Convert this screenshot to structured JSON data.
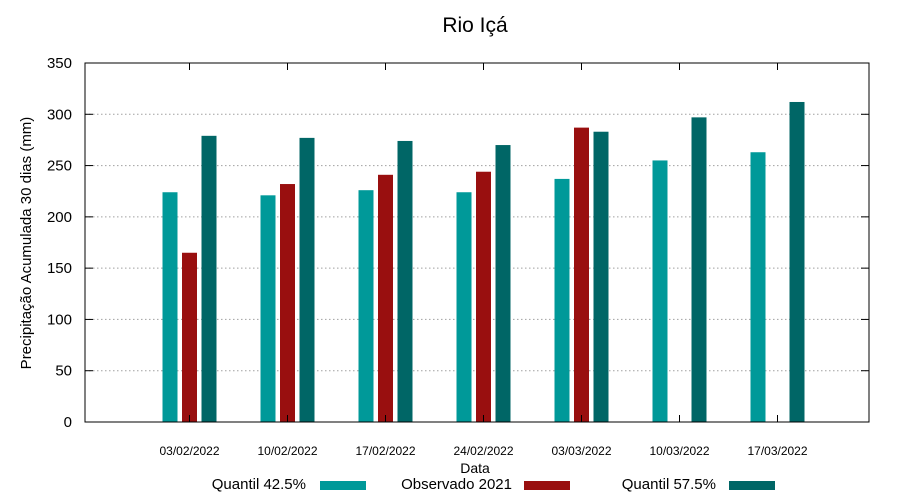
{
  "chart_data": {
    "type": "bar",
    "title": "Rio Içá",
    "xlabel": "Data",
    "ylabel": "Precipitação Acumulada 30 dias (mm)",
    "ylim": [
      0,
      350
    ],
    "yticks": [
      0,
      50,
      100,
      150,
      200,
      250,
      300,
      350
    ],
    "grid": true,
    "legend_position": "bottom",
    "categories": [
      "03/02/2022",
      "10/02/2022",
      "17/02/2022",
      "24/02/2022",
      "03/03/2022",
      "10/03/2022",
      "17/03/2022"
    ],
    "series": [
      {
        "name": "Quantil 42.5%",
        "color": "#009999",
        "values": [
          224,
          221,
          226,
          224,
          237,
          255,
          263
        ]
      },
      {
        "name": "Observado 2021",
        "color": "#990f0f",
        "values": [
          165,
          232,
          241,
          244,
          287,
          null,
          null
        ]
      },
      {
        "name": "Quantil 57.5%",
        "color": "#006666",
        "values": [
          279,
          277,
          274,
          270,
          283,
          297,
          312
        ]
      }
    ]
  }
}
